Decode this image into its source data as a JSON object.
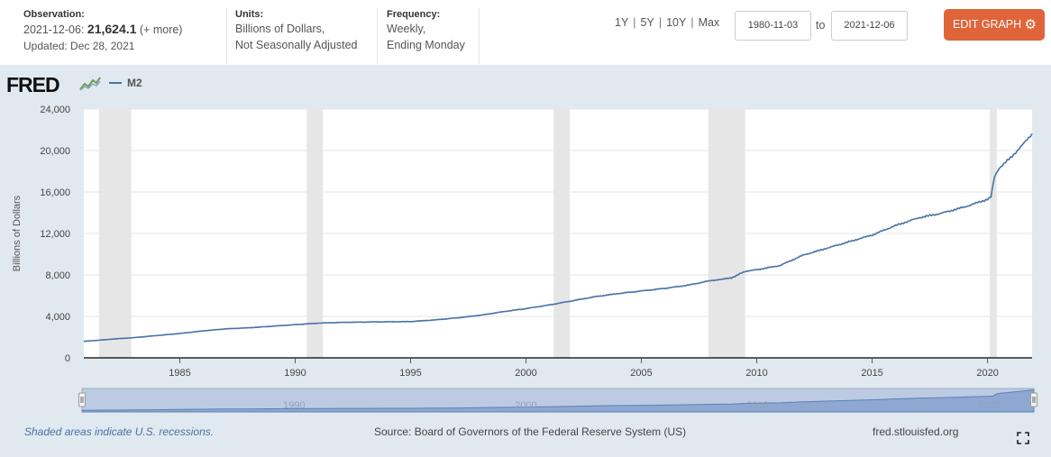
{
  "header": {
    "observation_label": "Observation:",
    "observation_date": "2021-12-06:",
    "observation_value": "21,624.1",
    "observation_more": "(+ more)",
    "updated": "Updated: Dec 28, 2021",
    "units_label": "Units:",
    "units_line1": "Billions of Dollars,",
    "units_line2": "Not Seasonally Adjusted",
    "frequency_label": "Frequency:",
    "frequency_line1": "Weekly,",
    "frequency_line2": "Ending Monday",
    "range_links": [
      "1Y",
      "5Y",
      "10Y",
      "Max"
    ],
    "date_from": "1980-11-03",
    "to_label": "to",
    "date_to": "2021-12-06",
    "edit_button": "EDIT GRAPH"
  },
  "logo": "FRED",
  "legend_label": "M2",
  "footer": {
    "recession_note": "Shaded areas indicate U.S. recessions.",
    "source": "Source: Board of Governors of the Federal Reserve System (US)",
    "site": "fred.stlouisfed.org"
  },
  "colors": {
    "series": "#4572a7",
    "recession": "#e6e6e6",
    "button": "#e0643a",
    "background": "#e1e9f0"
  },
  "chart_data": {
    "type": "line",
    "title": "",
    "ylabel": "Billions of Dollars",
    "xlabel": "",
    "xlim": [
      1980.84,
      2021.93
    ],
    "ylim": [
      0,
      24000
    ],
    "y_ticks": [
      0,
      4000,
      8000,
      12000,
      16000,
      20000,
      24000
    ],
    "y_tick_labels": [
      "0",
      "4,000",
      "8,000",
      "12,000",
      "16,000",
      "20,000",
      "24,000"
    ],
    "x_ticks": [
      1985,
      1990,
      1995,
      2000,
      2005,
      2010,
      2015,
      2020
    ],
    "x_tick_labels": [
      "1985",
      "1990",
      "1995",
      "2000",
      "2005",
      "2010",
      "2015",
      "2020"
    ],
    "navigator_labels": [
      "1990",
      "2000",
      "2010",
      "2020"
    ],
    "recessions": [
      [
        1981.5,
        1982.9
      ],
      [
        1990.5,
        1991.2
      ],
      [
        2001.2,
        2001.9
      ],
      [
        2007.9,
        2009.5
      ],
      [
        2020.1,
        2020.4
      ]
    ],
    "series": [
      {
        "name": "M2",
        "x": [
          1980.84,
          1981.5,
          1982.0,
          1983.0,
          1984.0,
          1985.0,
          1986.0,
          1987.0,
          1988.0,
          1989.0,
          1990.0,
          1991.0,
          1992.0,
          1993.0,
          1994.0,
          1995.0,
          1996.0,
          1997.0,
          1998.0,
          1999.0,
          2000.0,
          2001.0,
          2002.0,
          2003.0,
          2004.0,
          2005.0,
          2006.0,
          2007.0,
          2008.0,
          2008.9,
          2009.5,
          2010.0,
          2011.0,
          2012.0,
          2013.0,
          2014.0,
          2015.0,
          2016.0,
          2017.0,
          2018.0,
          2019.0,
          2020.0,
          2020.15,
          2020.3,
          2020.5,
          2021.0,
          2021.5,
          2021.93
        ],
        "values": [
          1600,
          1700,
          1800,
          1950,
          2150,
          2350,
          2600,
          2800,
          2900,
          3050,
          3200,
          3350,
          3420,
          3450,
          3480,
          3500,
          3650,
          3850,
          4100,
          4450,
          4750,
          5100,
          5500,
          5900,
          6200,
          6450,
          6700,
          7000,
          7450,
          7700,
          8350,
          8500,
          8900,
          9900,
          10550,
          11200,
          11850,
          12750,
          13500,
          13950,
          14550,
          15300,
          15500,
          17500,
          18300,
          19300,
          20500,
          21624
        ]
      }
    ]
  }
}
